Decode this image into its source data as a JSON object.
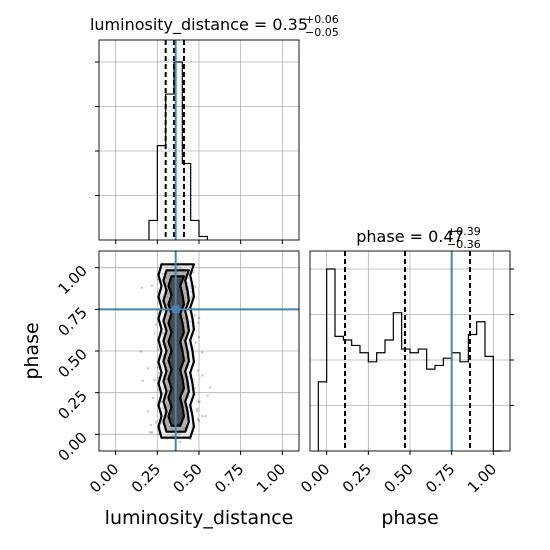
{
  "chart_data": [
    {
      "type": "histogram",
      "panel": "luminosity_distance marginal",
      "title": "luminosity_distance = 0.35",
      "title_parts": {
        "param": "luminosity_distance",
        "median": "0.35",
        "upper": "+0.06",
        "lower": "−0.05"
      },
      "xlim": [
        -0.1,
        1.1
      ],
      "bins": [
        {
          "x0": 0.2,
          "x1": 0.25,
          "count": 0.11
        },
        {
          "x0": 0.25,
          "x1": 0.3,
          "count": 0.53
        },
        {
          "x0": 0.3,
          "x1": 0.35,
          "count": 0.82
        },
        {
          "x0": 0.35,
          "x1": 0.4,
          "count": 1.0
        },
        {
          "x0": 0.4,
          "x1": 0.45,
          "count": 0.43
        },
        {
          "x0": 0.45,
          "x1": 0.5,
          "count": 0.11
        },
        {
          "x0": 0.5,
          "x1": 0.55,
          "count": 0.02
        }
      ],
      "quantiles": [
        0.3,
        0.35,
        0.41
      ],
      "truth": 0.36,
      "grid": true
    },
    {
      "type": "scatter",
      "panel": "2D joint density",
      "xlim": [
        -0.1,
        1.1
      ],
      "ylim": [
        -0.1,
        1.1
      ],
      "xlabel": "luminosity_distance",
      "ylabel": "phase",
      "xticks": [
        "0.00",
        "0.25",
        "0.50",
        "0.75",
        "1.00"
      ],
      "yticks": [
        "0.00",
        "0.25",
        "0.50",
        "0.75",
        "1.00"
      ],
      "truth_point": [
        0.36,
        0.75
      ],
      "sample_center_x": 0.36,
      "sample_spread_x": 0.035,
      "sample_phase_range": [
        0.0,
        1.0
      ],
      "grid": true
    },
    {
      "type": "histogram",
      "panel": "phase marginal",
      "title": "phase = 0.47",
      "title_parts": {
        "param": "phase",
        "median": "0.47",
        "upper": "+0.39",
        "lower": "−0.36"
      },
      "xlabel": "phase",
      "xlim": [
        -0.1,
        1.1
      ],
      "xticks": [
        "0.00",
        "0.25",
        "0.50",
        "0.75",
        "1.00"
      ],
      "bins": [
        {
          "x0": -0.05,
          "x1": 0.0,
          "count": 0.38
        },
        {
          "x0": 0.0,
          "x1": 0.05,
          "count": 1.0
        },
        {
          "x0": 0.05,
          "x1": 0.1,
          "count": 0.63
        },
        {
          "x0": 0.1,
          "x1": 0.15,
          "count": 0.61
        },
        {
          "x0": 0.15,
          "x1": 0.2,
          "count": 0.58
        },
        {
          "x0": 0.2,
          "x1": 0.25,
          "count": 0.54
        },
        {
          "x0": 0.25,
          "x1": 0.3,
          "count": 0.49
        },
        {
          "x0": 0.3,
          "x1": 0.35,
          "count": 0.54
        },
        {
          "x0": 0.35,
          "x1": 0.4,
          "count": 0.61
        },
        {
          "x0": 0.4,
          "x1": 0.45,
          "count": 0.76
        },
        {
          "x0": 0.45,
          "x1": 0.5,
          "count": 0.56
        },
        {
          "x0": 0.5,
          "x1": 0.55,
          "count": 0.54
        },
        {
          "x0": 0.55,
          "x1": 0.6,
          "count": 0.56
        },
        {
          "x0": 0.6,
          "x1": 0.65,
          "count": 0.45
        },
        {
          "x0": 0.65,
          "x1": 0.7,
          "count": 0.47
        },
        {
          "x0": 0.7,
          "x1": 0.75,
          "count": 0.51
        },
        {
          "x0": 0.75,
          "x1": 0.8,
          "count": 0.54
        },
        {
          "x0": 0.8,
          "x1": 0.85,
          "count": 0.49
        },
        {
          "x0": 0.85,
          "x1": 0.9,
          "count": 0.64
        },
        {
          "x0": 0.9,
          "x1": 0.95,
          "count": 0.71
        },
        {
          "x0": 0.95,
          "x1": 1.0,
          "count": 0.52
        },
        {
          "x0": 1.0,
          "x1": 1.05,
          "count": 0.0
        }
      ],
      "quantiles": [
        0.11,
        0.47,
        0.86
      ],
      "truth": 0.75,
      "grid": true
    }
  ],
  "colors": {
    "truth": "#4682b4",
    "hist": "#000000",
    "grid": "#b0b0b0",
    "density_dark": "#3c3c3c"
  }
}
